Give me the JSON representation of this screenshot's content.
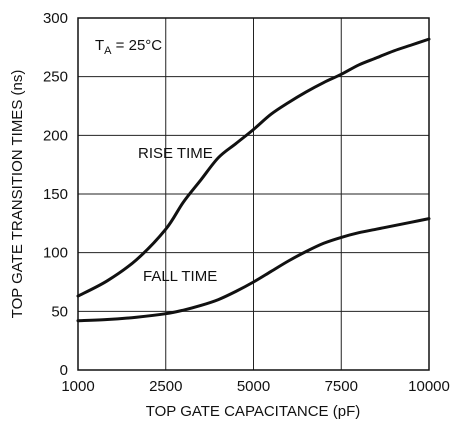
{
  "chart_data": {
    "type": "line",
    "title": "",
    "xlabel": "TOP GATE CAPACITANCE (pF)",
    "ylabel": "TOP GATE TRANSITION TIMES (ns)",
    "xlim": [
      1000,
      10000
    ],
    "ylim": [
      0,
      300
    ],
    "grid": true,
    "x_ticks": [
      "1000",
      "2500",
      "5000",
      "7500",
      "10000"
    ],
    "y_ticks": [
      "0",
      "50",
      "100",
      "150",
      "200",
      "250",
      "300"
    ],
    "annotation": {
      "prefix": "T",
      "sub": "A",
      "suffix": " = 25°C"
    },
    "series": [
      {
        "name": "RISE TIME",
        "x": [
          1000,
          1500,
          2000,
          2500,
          3000,
          3500,
          4000,
          4500,
          5000,
          5500,
          6000,
          6500,
          7000,
          7500,
          8000,
          8500,
          9000,
          9500,
          10000
        ],
        "y": [
          63,
          76,
          94,
          120,
          143,
          162,
          181,
          193,
          205,
          218,
          228,
          237,
          245,
          252,
          260,
          266,
          272,
          277,
          282
        ]
      },
      {
        "name": "FALL TIME",
        "x": [
          1000,
          1500,
          2000,
          2500,
          3000,
          3500,
          4000,
          4500,
          5000,
          5500,
          6000,
          6500,
          7000,
          7500,
          8000,
          8500,
          9000,
          9500,
          10000
        ],
        "y": [
          42,
          43,
          45,
          48,
          51,
          55,
          60,
          67,
          75,
          84,
          93,
          101,
          108,
          113,
          117,
          120,
          123,
          126,
          129
        ]
      }
    ]
  }
}
